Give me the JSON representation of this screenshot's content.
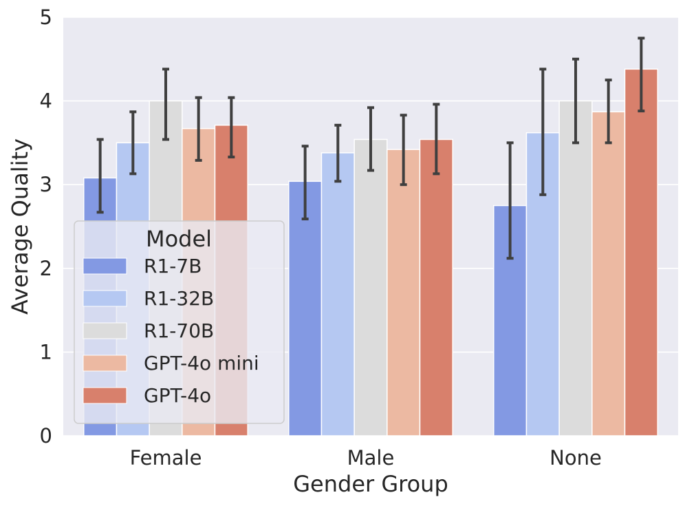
{
  "chart_data": {
    "type": "bar",
    "title": "",
    "xlabel": "Gender Group",
    "ylabel": "Average Quality",
    "ylim": [
      0,
      5
    ],
    "yticks": [
      "0",
      "1",
      "2",
      "3",
      "4",
      "5"
    ],
    "grid": true,
    "categories": [
      "Female",
      "Male",
      "None"
    ],
    "legend": {
      "title": "Model",
      "placement": "lower-left"
    },
    "series": [
      {
        "name": "R1-7B",
        "color": "#8399e3",
        "values": [
          3.08,
          3.04,
          2.75
        ],
        "error_low": [
          2.67,
          2.59,
          2.12
        ],
        "error_high": [
          3.54,
          3.46,
          3.5
        ]
      },
      {
        "name": "R1-32B",
        "color": "#b5c8f2",
        "values": [
          3.5,
          3.38,
          3.62
        ],
        "error_low": [
          3.13,
          3.04,
          2.88
        ],
        "error_high": [
          3.87,
          3.71,
          4.38
        ]
      },
      {
        "name": "R1-70B",
        "color": "#dcdcdc",
        "values": [
          4.0,
          3.54,
          4.0
        ],
        "error_low": [
          3.54,
          3.17,
          3.5
        ],
        "error_high": [
          4.38,
          3.92,
          4.5
        ]
      },
      {
        "name": "GPT-4o mini",
        "color": "#ecb9a2",
        "values": [
          3.67,
          3.42,
          3.87
        ],
        "error_low": [
          3.29,
          3.0,
          3.5
        ],
        "error_high": [
          4.04,
          3.83,
          4.25
        ]
      },
      {
        "name": "GPT-4o",
        "color": "#d8806c",
        "values": [
          3.71,
          3.54,
          4.38
        ],
        "error_low": [
          3.33,
          3.13,
          3.88
        ],
        "error_high": [
          4.04,
          3.96,
          4.75
        ]
      }
    ]
  },
  "colors": {
    "plot_background": "#eaeaf2",
    "grid": "#ffffff",
    "error_bar": "#3f3f3f"
  }
}
